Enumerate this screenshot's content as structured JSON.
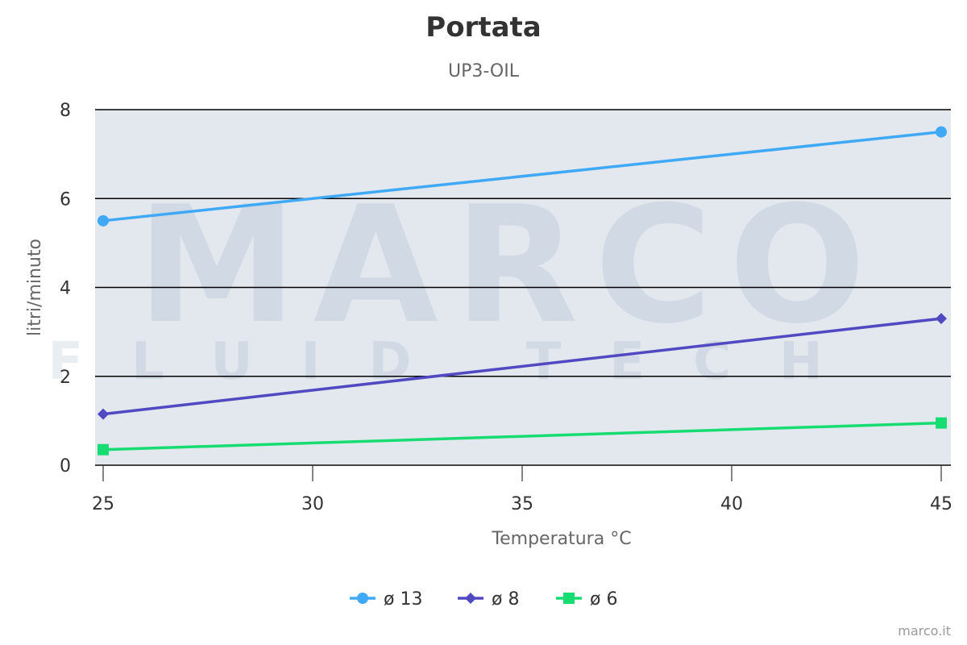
{
  "chart_data": {
    "type": "line",
    "title": "Portata",
    "subtitle": "UP3-OIL",
    "xlabel": "Temperatura °C",
    "ylabel": "litri/minuto",
    "xlim": [
      25,
      45
    ],
    "ylim": [
      0,
      8
    ],
    "x_ticks": [
      25,
      30,
      35,
      40,
      45
    ],
    "y_ticks": [
      0,
      2,
      4,
      6,
      8
    ],
    "grid": true,
    "legend_position": "bottom-center",
    "plot_background": "#e3e8ef",
    "series": [
      {
        "name": "ø 13",
        "color": "#3fa9f5",
        "marker": "circle",
        "points": [
          {
            "x": 25,
            "y": 5.5
          },
          {
            "x": 45,
            "y": 7.5
          }
        ]
      },
      {
        "name": "ø 8",
        "color": "#5149c1",
        "marker": "diamond",
        "points": [
          {
            "x": 25,
            "y": 1.15
          },
          {
            "x": 45,
            "y": 3.3
          }
        ]
      },
      {
        "name": "ø 6",
        "color": "#17dc71",
        "marker": "square",
        "points": [
          {
            "x": 25,
            "y": 0.35
          },
          {
            "x": 45,
            "y": 0.95
          }
        ]
      }
    ],
    "watermark": {
      "line1": "MARCO",
      "line2": "FLUID TECH"
    }
  },
  "credits": "marco.it"
}
